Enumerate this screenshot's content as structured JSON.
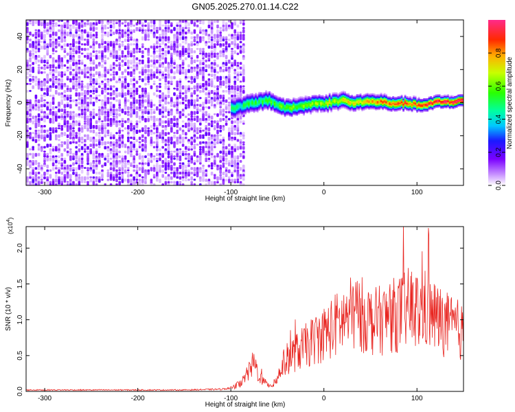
{
  "figure_title": "GN05.2025.270.01.14.C22",
  "colorbar": {
    "label": "Normalized spectral amplitude",
    "ticks": [
      "0.0",
      "0.2",
      "0.4",
      "0.6",
      "0.8"
    ],
    "range": [
      0,
      1
    ]
  },
  "chart_data": [
    {
      "type": "heatmap",
      "title": "",
      "xlabel": "Height of straight line (km)",
      "ylabel": "Frequency (Hz)",
      "xlim": [
        -320,
        150
      ],
      "ylim": [
        -50,
        50
      ],
      "xticks": [
        -300,
        -200,
        -100,
        0,
        100
      ],
      "yticks": [
        -40,
        -20,
        0,
        20,
        40
      ],
      "xtick_labels": [
        "-300",
        "-200",
        "-100",
        "0",
        "100"
      ],
      "ytick_labels": [
        "-40",
        "-20",
        "0",
        "20",
        "40"
      ],
      "noise_region_x": [
        -320,
        -85
      ],
      "signal_trace": {
        "x": [
          -100,
          -90,
          -80,
          -70,
          -60,
          -50,
          -40,
          -30,
          -20,
          -10,
          0,
          10,
          20,
          30,
          40,
          50,
          60,
          70,
          80,
          90,
          100,
          110,
          120,
          130,
          140,
          150
        ],
        "frequency": [
          -3,
          -2,
          0,
          1,
          2,
          -1,
          -3,
          -2,
          -1,
          0,
          0,
          1,
          2,
          0,
          1,
          1,
          1,
          0,
          0,
          0,
          -1,
          -1,
          1,
          1,
          1,
          2
        ]
      },
      "grid": false
    },
    {
      "type": "line",
      "title": "",
      "xlabel": "Height of straight line (km)",
      "ylabel": "SNR (10 * v/v)",
      "y_multiplier": "(x10",
      "y_multiplier_exp": "4",
      "y_multiplier_close": ")",
      "xlim": [
        -320,
        150
      ],
      "ylim": [
        0,
        2.3
      ],
      "xticks": [
        -300,
        -200,
        -100,
        0,
        100
      ],
      "yticks": [
        0,
        0.5,
        1.0,
        1.5,
        2.0
      ],
      "xtick_labels": [
        "-300",
        "-200",
        "-100",
        "0",
        "100"
      ],
      "ytick_labels": [
        "0.0",
        "0.5",
        "1.0",
        "1.5",
        "2.0"
      ],
      "series": [
        {
          "color": "#e8231e",
          "x": [
            -320,
            -300,
            -250,
            -200,
            -150,
            -110,
            -100,
            -90,
            -85,
            -80,
            -75,
            -70,
            -65,
            -60,
            -55,
            -50,
            -45,
            -40,
            -35,
            -30,
            -25,
            -20,
            -15,
            -10,
            -5,
            0,
            5,
            10,
            15,
            20,
            25,
            30,
            35,
            40,
            45,
            50,
            55,
            60,
            65,
            70,
            75,
            80,
            85,
            90,
            95,
            100,
            105,
            110,
            115,
            120,
            125,
            130,
            135,
            140,
            145,
            150
          ],
          "values": [
            0.02,
            0.02,
            0.02,
            0.02,
            0.02,
            0.03,
            0.05,
            0.12,
            0.2,
            0.32,
            0.45,
            0.25,
            0.15,
            0.1,
            0.1,
            0.2,
            0.4,
            0.5,
            0.55,
            0.6,
            0.65,
            0.7,
            0.75,
            0.8,
            0.85,
            0.9,
            0.95,
            1.0,
            1.05,
            1.1,
            1.15,
            1.2,
            1.22,
            1.2,
            1.15,
            1.1,
            1.08,
            1.1,
            1.12,
            1.15,
            1.18,
            1.2,
            1.25,
            1.28,
            1.3,
            1.25,
            1.2,
            1.3,
            1.2,
            1.15,
            1.1,
            1.05,
            1.0,
            1.0,
            0.95,
            0.9
          ]
        }
      ],
      "grid": false
    }
  ]
}
